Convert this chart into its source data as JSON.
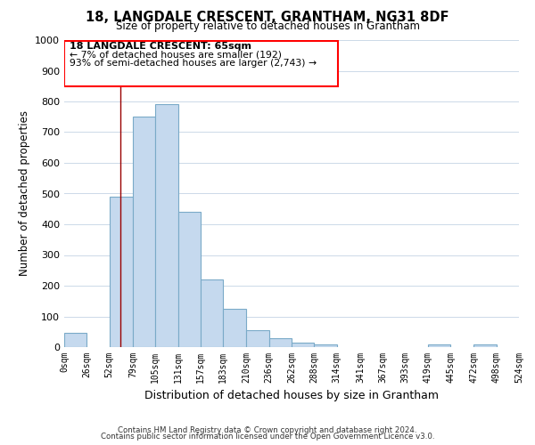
{
  "title": "18, LANGDALE CRESCENT, GRANTHAM, NG31 8DF",
  "subtitle": "Size of property relative to detached houses in Grantham",
  "xlabel": "Distribution of detached houses by size in Grantham",
  "ylabel": "Number of detached properties",
  "bar_color": "#c5d9ee",
  "bar_edge_color": "#7aaac8",
  "bin_edges": [
    0,
    26,
    52,
    79,
    105,
    131,
    157,
    183,
    210,
    236,
    262,
    288,
    314,
    341,
    367,
    393,
    419,
    445,
    472,
    498,
    524
  ],
  "bar_heights": [
    45,
    0,
    490,
    750,
    790,
    440,
    220,
    125,
    55,
    30,
    15,
    10,
    0,
    0,
    0,
    0,
    8,
    0,
    8,
    0
  ],
  "tick_labels": [
    "0sqm",
    "26sqm",
    "52sqm",
    "79sqm",
    "105sqm",
    "131sqm",
    "157sqm",
    "183sqm",
    "210sqm",
    "236sqm",
    "262sqm",
    "288sqm",
    "314sqm",
    "341sqm",
    "367sqm",
    "393sqm",
    "419sqm",
    "445sqm",
    "472sqm",
    "498sqm",
    "524sqm"
  ],
  "ylim": [
    0,
    1000
  ],
  "yticks": [
    0,
    100,
    200,
    300,
    400,
    500,
    600,
    700,
    800,
    900,
    1000
  ],
  "property_line_x": 65,
  "annotation_line1": "18 LANGDALE CRESCENT: 65sqm",
  "annotation_line2": "← 7% of detached houses are smaller (192)",
  "annotation_line3": "93% of semi-detached houses are larger (2,743) →",
  "footer_line1": "Contains HM Land Registry data © Crown copyright and database right 2024.",
  "footer_line2": "Contains public sector information licensed under the Open Government Licence v3.0.",
  "background_color": "#ffffff",
  "grid_color": "#ccd9e8"
}
